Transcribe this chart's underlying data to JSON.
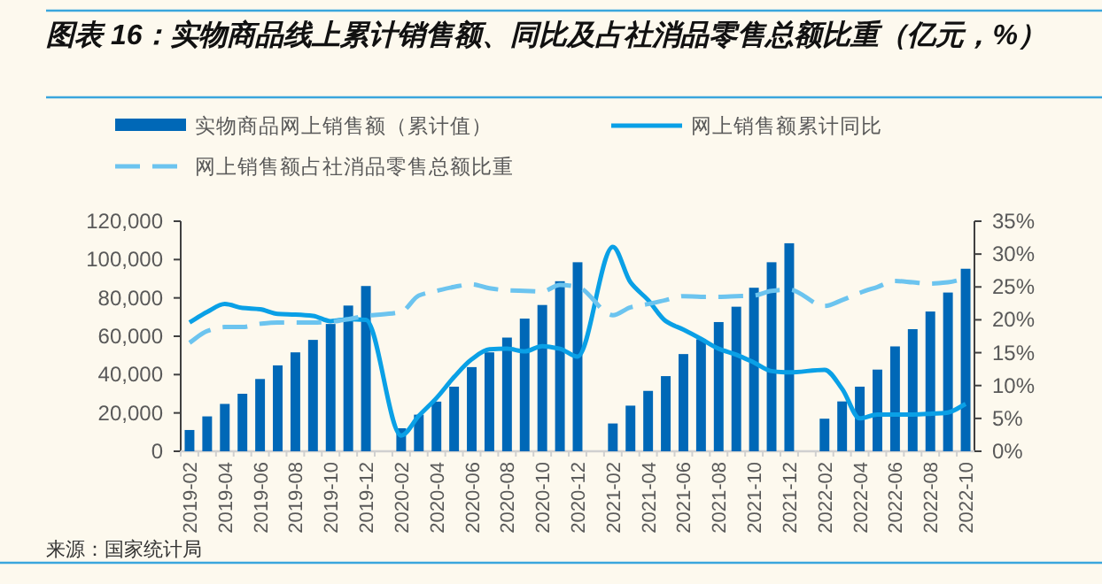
{
  "chart_data": {
    "type": "bar",
    "title": "图表 16：实物商品线上累计销售额、同比及占社消品零售总额比重（亿元，%）",
    "categories": [
      "2019-02",
      null,
      "2019-04",
      null,
      "2019-06",
      null,
      "2019-08",
      null,
      "2019-10",
      null,
      "2019-12",
      null,
      "2020-02",
      null,
      "2020-04",
      null,
      "2020-06",
      null,
      "2020-08",
      null,
      "2020-10",
      null,
      "2020-12",
      null,
      "2021-02",
      null,
      "2021-04",
      null,
      "2021-06",
      null,
      "2021-08",
      null,
      "2021-10",
      null,
      "2021-12",
      null,
      "2022-02",
      null,
      "2022-04",
      null,
      "2022-06",
      null,
      "2022-08",
      null,
      "2022-10"
    ],
    "series": [
      {
        "name": "实物商品网上销售额（累计值）",
        "color": "#0068b7",
        "values": [
          11100,
          18200,
          24700,
          30000,
          37700,
          44800,
          51600,
          58100,
          66400,
          76000,
          86200,
          null,
          12000,
          19100,
          25900,
          33700,
          43900,
          51600,
          59300,
          69200,
          76300,
          88700,
          98600,
          null,
          14500,
          23800,
          31500,
          39200,
          50700,
          58400,
          67400,
          75400,
          85300,
          98600,
          108500,
          null,
          17000,
          26000,
          33700,
          42600,
          54700,
          63700,
          72900,
          82800,
          95200
        ]
      },
      {
        "name": "网上销售额累计同比",
        "type": "line",
        "axis": "y2",
        "line_style": "solid",
        "color": "#0aa0e6",
        "values": [
          19.6,
          21.2,
          22.4,
          21.8,
          21.6,
          20.9,
          20.8,
          20.6,
          19.8,
          20.1,
          20.0,
          null,
          2.4,
          5.4,
          8.1,
          11.3,
          14.0,
          15.5,
          15.6,
          15.2,
          16.0,
          15.6,
          14.4,
          null,
          31.1,
          25.7,
          23.0,
          19.8,
          18.5,
          17.1,
          15.6,
          14.7,
          13.5,
          12.2,
          12.0,
          null,
          12.4,
          9.5,
          5.0,
          5.6,
          5.6,
          5.6,
          5.7,
          5.9,
          7.2
        ]
      },
      {
        "name": "网上销售额占社消品零售总额比重",
        "type": "line",
        "axis": "y2",
        "line_style": "dashed",
        "color": "#6cc4ef",
        "values": [
          16.5,
          18.3,
          18.9,
          18.9,
          19.4,
          19.6,
          19.6,
          19.6,
          19.7,
          20.1,
          20.6,
          null,
          21.2,
          23.7,
          24.4,
          25.0,
          25.4,
          24.8,
          24.5,
          24.4,
          24.3,
          25.3,
          25.0,
          null,
          20.7,
          21.9,
          22.4,
          23.0,
          23.6,
          23.5,
          23.5,
          23.6,
          23.7,
          24.4,
          24.6,
          null,
          22.1,
          23.0,
          24.1,
          25.0,
          25.9,
          25.7,
          25.5,
          25.7,
          26.3
        ]
      }
    ],
    "ylim": [
      0,
      120000
    ],
    "yticks": [
      0,
      {
        "value": 20000,
        "label": "20,000"
      },
      {
        "value": 40000,
        "label": "40,000"
      },
      {
        "value": 60000,
        "label": "60,000"
      },
      {
        "value": 80000,
        "label": "80,000"
      },
      {
        "value": 100000,
        "label": "100,000"
      },
      {
        "value": 120000,
        "label": "120,000"
      }
    ],
    "y2lim": [
      0,
      35
    ],
    "y2ticks": [
      {
        "value": 0,
        "label": "0%"
      },
      {
        "value": 5,
        "label": "5%"
      },
      {
        "value": 10,
        "label": "10%"
      },
      {
        "value": 15,
        "label": "15%"
      },
      {
        "value": 20,
        "label": "20%"
      },
      {
        "value": 25,
        "label": "25%"
      },
      {
        "value": 30,
        "label": "30%"
      },
      {
        "value": 35,
        "label": "35%"
      }
    ],
    "legend": "top",
    "grid": false,
    "marker": "none",
    "annotations": [
      "来源：国家统计局"
    ]
  }
}
